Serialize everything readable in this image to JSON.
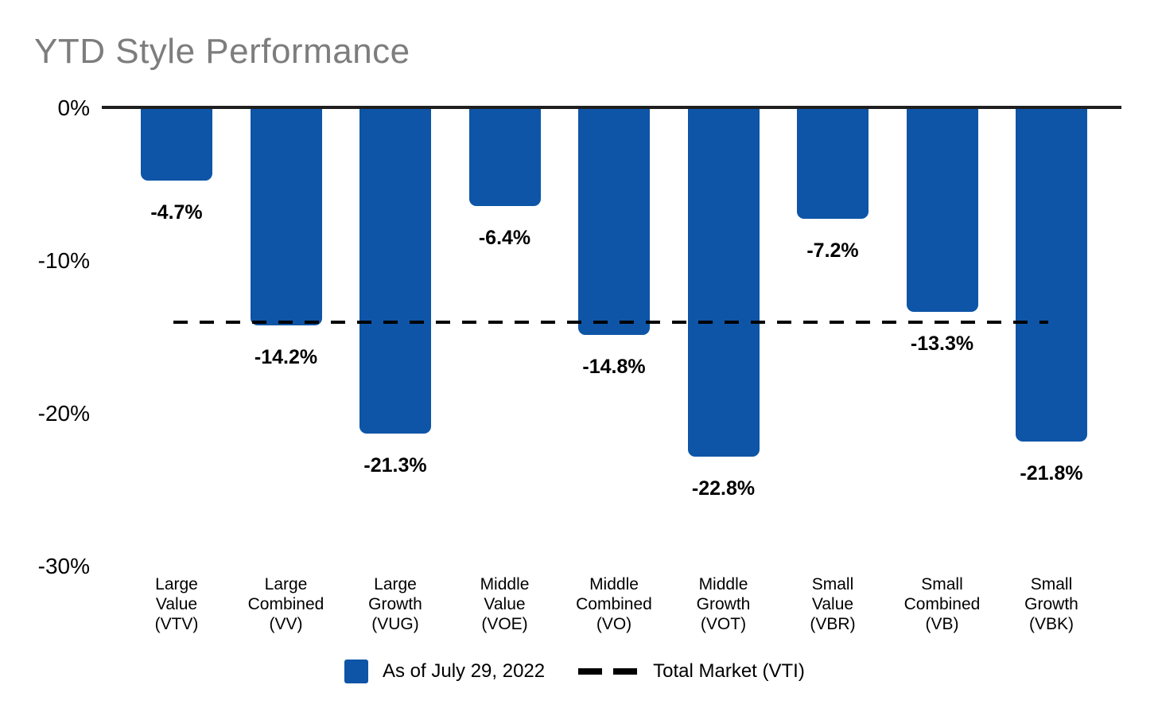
{
  "title": "YTD Style Performance",
  "colors": {
    "bar": "#0e55a7",
    "title_text": "#7d7d7d",
    "axis_line": "#1f1f1f",
    "reference_line": "#000000",
    "data_label": "#000000"
  },
  "chart_data": {
    "type": "bar",
    "title": "YTD Style Performance",
    "categories": [
      "Large\nValue\n(VTV)",
      "Large\nCombined\n(VV)",
      "Large\nGrowth\n(VUG)",
      "Middle\nValue\n(VOE)",
      "Middle\nCombined\n(VO)",
      "Middle\nGrowth\n(VOT)",
      "Small\nValue\n(VBR)",
      "Small\nCombined\n(VB)",
      "Small\nGrowth\n(VBK)"
    ],
    "values": [
      -4.7,
      -14.2,
      -21.3,
      -6.4,
      -14.8,
      -22.8,
      -7.2,
      -13.3,
      -21.8
    ],
    "data_labels": [
      "-4.7%",
      "-14.2%",
      "-21.3%",
      "-6.4%",
      "-14.8%",
      "-22.8%",
      "-7.2%",
      "-13.3%",
      "-21.8%"
    ],
    "xlabel": "",
    "ylabel": "",
    "ylim": [
      0,
      -30
    ],
    "grid": false,
    "yticks": [
      {
        "value": 0,
        "label": "0%"
      },
      {
        "value": -10,
        "label": "-10%"
      },
      {
        "value": -20,
        "label": "-20%"
      },
      {
        "value": -30,
        "label": "-30%"
      }
    ],
    "reference_line": {
      "value": -14.0,
      "label": "Total Market (VTI)",
      "style": "dashed"
    },
    "legend": {
      "position": "bottom",
      "items": [
        {
          "marker": "square",
          "label": "As of July 29, 2022"
        },
        {
          "marker": "dashed-line",
          "label": "Total Market (VTI)"
        }
      ]
    }
  }
}
